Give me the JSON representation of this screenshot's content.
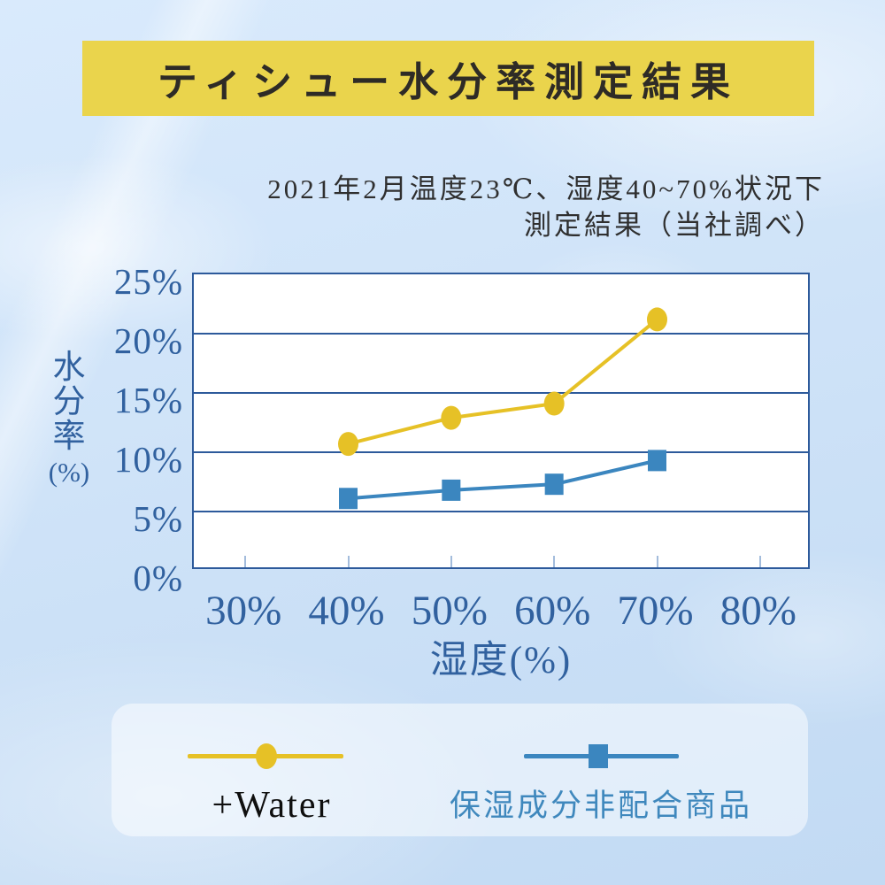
{
  "header": {
    "title": "ティシュー水分率測定結果",
    "subtitle_line1": "2021年2月温度23℃、湿度40~70%状況下",
    "subtitle_line2": "測定結果（当社調べ）"
  },
  "chart_data": {
    "type": "line",
    "title": "ティシュー水分率測定結果",
    "xlabel": "湿度(%)",
    "ylabel": "水分率(%)",
    "x_ticklabels": [
      "30%",
      "40%",
      "50%",
      "60%",
      "70%",
      "80%"
    ],
    "y_ticklabels": [
      "0%",
      "5%",
      "10%",
      "15%",
      "20%",
      "25%"
    ],
    "ylim": [
      0,
      25
    ],
    "grid": "horizontal",
    "legend_position": "bottom",
    "series": [
      {
        "name": "+Water",
        "marker": "circle",
        "color_key": "water",
        "x": [
          40,
          50,
          60,
          70
        ],
        "values": [
          10.7,
          12.9,
          14.1,
          21.2
        ]
      },
      {
        "name": "保湿成分非配合商品",
        "marker": "square",
        "color_key": "product",
        "x": [
          40,
          50,
          60,
          70
        ],
        "values": [
          6.1,
          6.8,
          7.3,
          9.3
        ]
      }
    ]
  },
  "legend": {
    "items": [
      {
        "label": "+Water",
        "marker": "circle-marker"
      },
      {
        "label": "保湿成分非配合商品",
        "marker": "square-marker"
      }
    ]
  },
  "colors": {
    "banner": "#ead44c",
    "axis": "#2d5a9b",
    "axis_text": "#31619f",
    "tick": "#a3bcdc",
    "water": "#e6c126",
    "product": "#3b86bf",
    "legend_product_text": "#3f88bd"
  }
}
